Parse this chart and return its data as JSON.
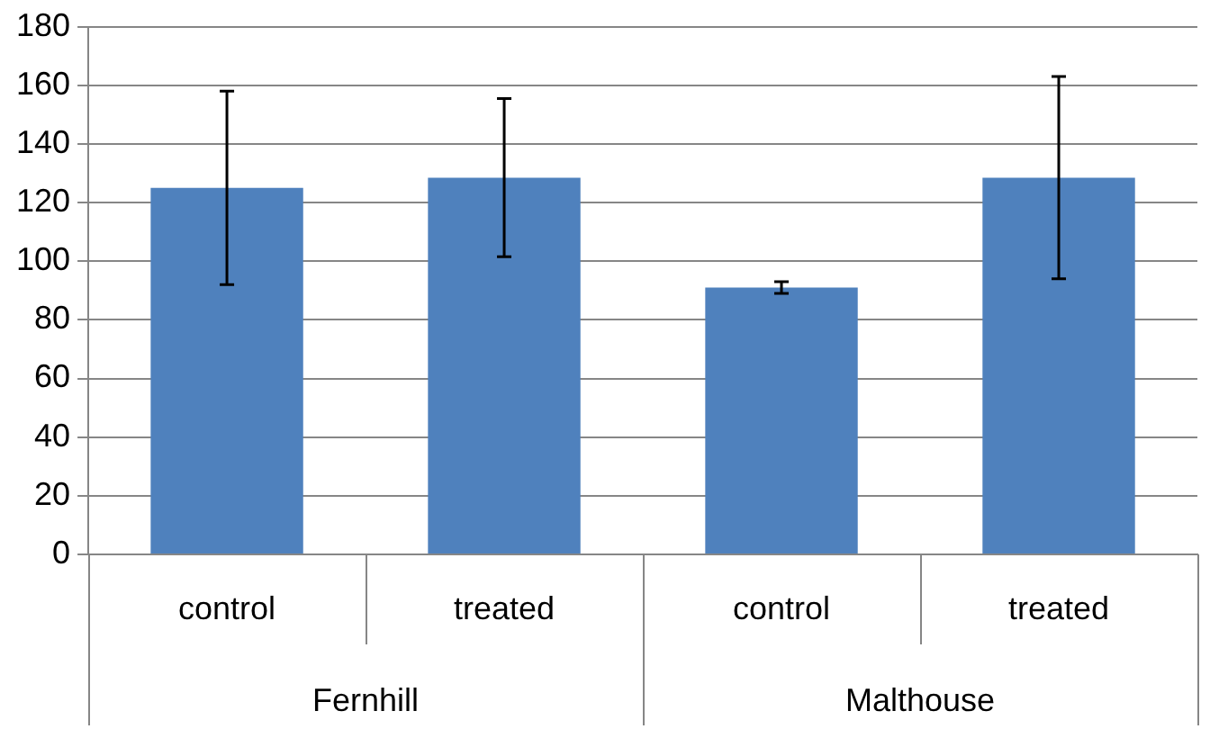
{
  "chart_data": {
    "type": "bar",
    "categories": [
      "control",
      "treated",
      "control",
      "treated"
    ],
    "values": [
      125,
      128.5,
      91,
      128.5
    ],
    "errors": [
      33,
      27,
      2,
      34.5
    ],
    "color": "#4f81bd",
    "annotations": [
      "Fernhill",
      "Malthouse"
    ],
    "ylim": [
      0,
      180
    ],
    "yticks": [
      0,
      20,
      40,
      60,
      80,
      100,
      120,
      140,
      160,
      180
    ],
    "grid": "y"
  }
}
